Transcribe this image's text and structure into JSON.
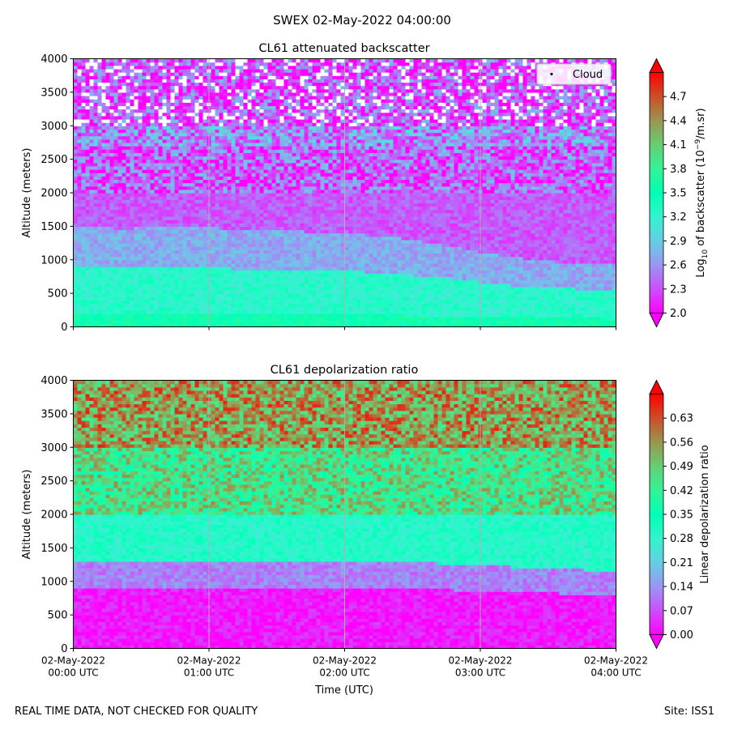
{
  "figure": {
    "title": "SWEX 02-May-2022 04:00:00",
    "footer_left": "REAL TIME DATA, NOT CHECKED FOR QUALITY",
    "footer_right": "Site: ISS1"
  },
  "colors": {
    "colormap": "rainbow",
    "gridline": "#b0b0b0",
    "cloud_marker": "#000000"
  },
  "chart_data": [
    {
      "type": "heatmap",
      "title": "CL61 attenuated backscatter",
      "ylabel": "Altitude (meters)",
      "xlabel": "",
      "ylim": [
        0,
        4000
      ],
      "yticks": [
        "0",
        "500",
        "1000",
        "1500",
        "2000",
        "2500",
        "3000",
        "3500",
        "4000"
      ],
      "xlim": [
        "2022-05-02 00:00",
        "2022-05-02 04:00"
      ],
      "xticks_shown": false,
      "grid": "vertical",
      "legend": {
        "placement": "top-right",
        "entries": [
          "Cloud"
        ]
      },
      "colorbar": {
        "label": "Log10 of backscatter (10^-9/m.sr)",
        "label_main": "Log",
        "label_sub": "10",
        "label_mid": " of backscatter (10",
        "label_sup": "−9",
        "label_end": "/m.sr)",
        "vmin": 2.0,
        "vmax": 5.0,
        "ticks": [
          "2.0",
          "2.3",
          "2.6",
          "2.9",
          "3.2",
          "3.5",
          "3.8",
          "4.1",
          "4.4",
          "4.7"
        ],
        "extend": "both"
      },
      "profile_description_layers": [
        {
          "from_m": 0,
          "to_m": 200,
          "value": 3.55
        },
        {
          "from_m": 200,
          "to_m": 900,
          "value": 3.25
        },
        {
          "from_m": 900,
          "to_m": 1500,
          "value": 2.7
        },
        {
          "from_m": 1500,
          "to_m": 2700,
          "value": 2.35
        },
        {
          "from_m": 2700,
          "to_m": 3000,
          "value": 2.55
        },
        {
          "from_m": 3000,
          "to_m": 4000,
          "value": 2.3
        }
      ],
      "boundary_layer_top_m": [
        900,
        880,
        920,
        870,
        860,
        840,
        800,
        720,
        630,
        580,
        560
      ]
    },
    {
      "type": "heatmap",
      "title": "CL61 depolarization ratio",
      "ylabel": "Altitude (meters)",
      "xlabel": "Time (UTC)",
      "ylim": [
        0,
        4000
      ],
      "yticks": [
        "0",
        "500",
        "1000",
        "1500",
        "2000",
        "2500",
        "3000",
        "3500",
        "4000"
      ],
      "xlim": [
        "2022-05-02 00:00",
        "2022-05-02 04:00"
      ],
      "xticks": [
        {
          "date": "02-May-2022",
          "time": "00:00 UTC"
        },
        {
          "date": "02-May-2022",
          "time": "01:00 UTC"
        },
        {
          "date": "02-May-2022",
          "time": "02:00 UTC"
        },
        {
          "date": "02-May-2022",
          "time": "03:00 UTC"
        },
        {
          "date": "02-May-2022",
          "time": "04:00 UTC"
        }
      ],
      "grid": "vertical",
      "colorbar": {
        "label": "Linear depolarization ratio",
        "vmin": 0.0,
        "vmax": 0.7,
        "ticks": [
          "0.00",
          "0.07",
          "0.14",
          "0.21",
          "0.28",
          "0.35",
          "0.42",
          "0.49",
          "0.56",
          "0.63"
        ],
        "extend": "both"
      },
      "profile_description_layers": [
        {
          "from_m": 0,
          "to_m": 900,
          "value": 0.02
        },
        {
          "from_m": 900,
          "to_m": 1300,
          "value": 0.12
        },
        {
          "from_m": 1300,
          "to_m": 2000,
          "value": 0.3
        },
        {
          "from_m": 2000,
          "to_m": 3000,
          "value": 0.45
        },
        {
          "from_m": 3000,
          "to_m": 4000,
          "value": 0.55
        }
      ]
    }
  ]
}
